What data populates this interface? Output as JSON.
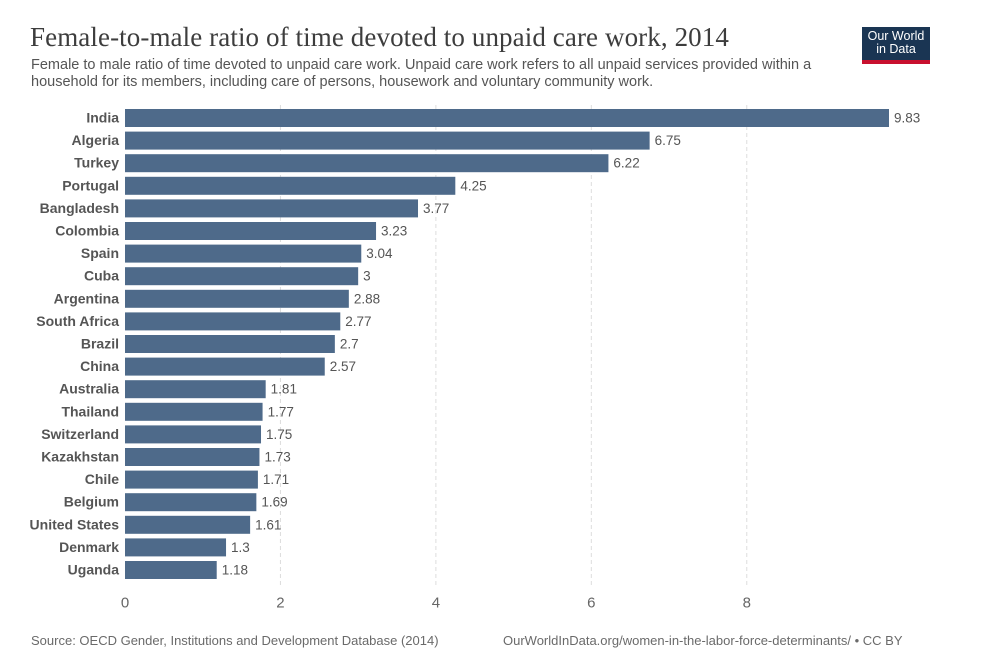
{
  "header": {
    "title": "Female-to-male ratio of time devoted to unpaid care work, 2014",
    "subtitle": "Female to male ratio of time devoted to unpaid care work. Unpaid care work refers to all unpaid services provided within a household for its members, including care of persons, housework and voluntary community work.",
    "logo_line1": "Our World",
    "logo_line2": "in Data"
  },
  "footer": {
    "source": "Source: OECD Gender, Institutions and Development Database (2014)",
    "url": "OurWorldInData.org/women-in-the-labor-force-determinants/ • CC BY"
  },
  "colors": {
    "bar": "#4e6a8a",
    "grid": "#dddddd",
    "logo_bg": "#1a3553",
    "logo_accent": "#c8102e"
  },
  "chart_data": {
    "type": "bar",
    "orientation": "horizontal",
    "categories": [
      "India",
      "Algeria",
      "Turkey",
      "Portugal",
      "Bangladesh",
      "Colombia",
      "Spain",
      "Cuba",
      "Argentina",
      "South Africa",
      "Brazil",
      "China",
      "Australia",
      "Thailand",
      "Switzerland",
      "Kazakhstan",
      "Chile",
      "Belgium",
      "United States",
      "Denmark",
      "Uganda"
    ],
    "values": [
      9.83,
      6.75,
      6.22,
      4.25,
      3.77,
      3.23,
      3.04,
      3,
      2.88,
      2.77,
      2.7,
      2.57,
      1.81,
      1.77,
      1.75,
      1.73,
      1.71,
      1.69,
      1.61,
      1.3,
      1.18
    ],
    "value_labels": [
      "9.83",
      "6.75",
      "6.22",
      "4.25",
      "3.77",
      "3.23",
      "3.04",
      "3",
      "2.88",
      "2.77",
      "2.7",
      "2.57",
      "1.81",
      "1.77",
      "1.75",
      "1.73",
      "1.71",
      "1.69",
      "1.61",
      "1.3",
      "1.18"
    ],
    "x_ticks": [
      0,
      2,
      4,
      6,
      8
    ],
    "x_tick_labels": [
      "0",
      "2",
      "4",
      "6",
      "8"
    ],
    "xlim": [
      0,
      9.83
    ],
    "grid": true
  }
}
